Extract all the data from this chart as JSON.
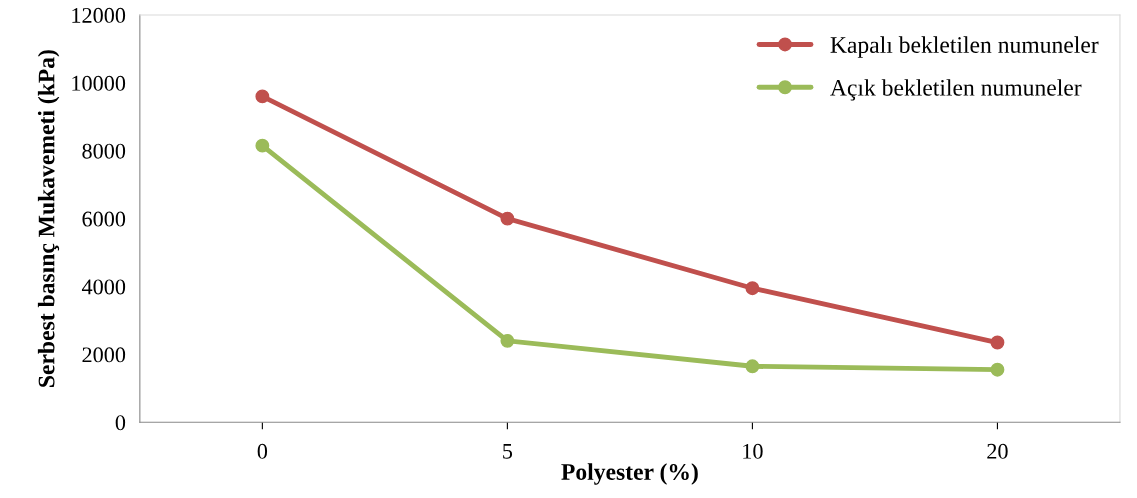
{
  "chart_data": {
    "type": "line",
    "xlabel": "Polyester (%)",
    "ylabel": "Serbest basınç Mukavemeti (kPa)",
    "categories": [
      "0",
      "5",
      "10",
      "20"
    ],
    "series": [
      {
        "name": "Kapalı bekletilen numuneler",
        "color": "#c0504d",
        "values": [
          9600,
          6000,
          3950,
          2350
        ]
      },
      {
        "name": "Açık bekletilen numuneler",
        "color": "#9bbb59",
        "values": [
          8150,
          2400,
          1650,
          1550
        ]
      }
    ],
    "ylim": [
      0,
      12000
    ],
    "yticks": [
      0,
      2000,
      4000,
      6000,
      8000,
      10000,
      12000
    ],
    "grid": false,
    "legend": "top right",
    "marker": "circle",
    "line_style": "solid"
  }
}
